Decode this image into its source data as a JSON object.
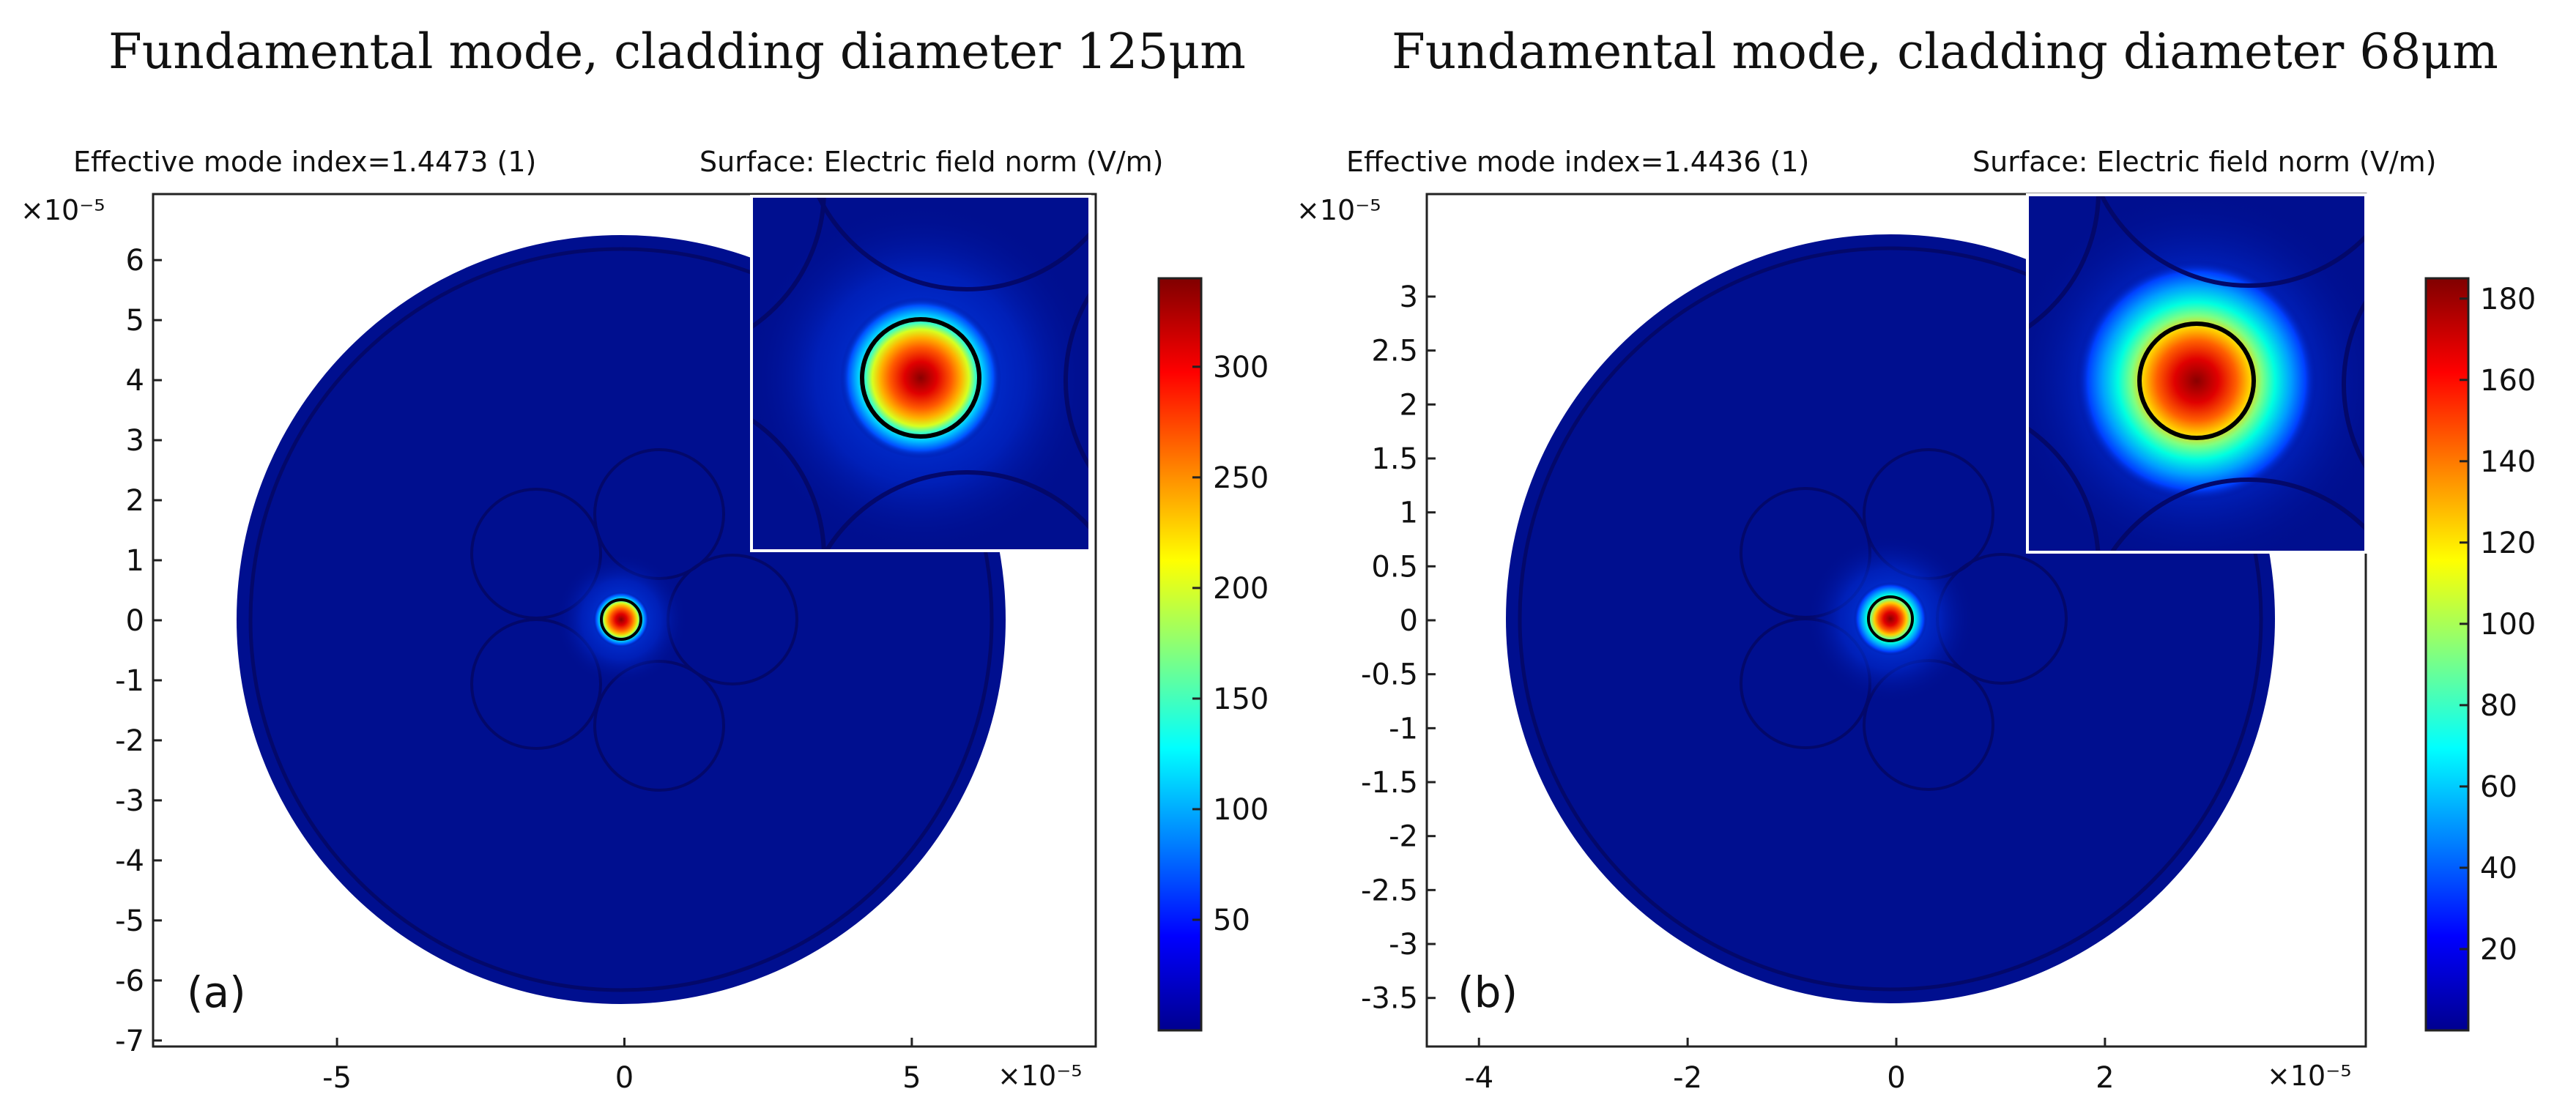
{
  "chart_data": [
    {
      "type": "heatmap",
      "panel_label": "(a)",
      "title": "Fundamental mode, cladding diameter 125μm",
      "subtitle_left": "Effective mode index=1.4473 (1)",
      "subtitle_right": "Surface: Electric field norm (V/m)",
      "x_exponent": "×10⁻⁵",
      "y_exponent": "×10⁻⁵",
      "xlim": [
        -8.2,
        8.2
      ],
      "ylim": [
        -7.1,
        7.1
      ],
      "x_ticks": [
        -5,
        0,
        5
      ],
      "x_tick_labels": [
        "-5",
        "0",
        "5"
      ],
      "y_ticks": [
        6,
        5,
        4,
        3,
        2,
        1,
        0,
        -1,
        -2,
        -3,
        -4,
        -5,
        -6,
        -7
      ],
      "y_tick_labels": [
        "6",
        "5",
        "4",
        "3",
        "2",
        "1",
        "0",
        "-1",
        "-2",
        "-3",
        "-4",
        "-5",
        "-6",
        "-7"
      ],
      "cladding_radius": 6.25,
      "core_radius": 0.3,
      "colorbar_range": [
        0,
        340
      ],
      "colorbar_ticks": [
        300,
        250,
        200,
        150,
        100,
        50
      ],
      "colorbar_tick_labels": [
        "300",
        "250",
        "200",
        "150",
        "100",
        "50"
      ]
    },
    {
      "type": "heatmap",
      "panel_label": "(b)",
      "title": "Fundamental mode, cladding diameter 68μm",
      "subtitle_left": "Effective mode index=1.4436 (1)",
      "subtitle_right": "Surface: Electric field norm (V/m)",
      "x_exponent": "×10⁻⁵",
      "y_exponent": "×10⁻⁵",
      "xlim": [
        -4.5,
        4.5
      ],
      "ylim": [
        -3.95,
        3.95
      ],
      "x_ticks": [
        -4,
        -2,
        0,
        2
      ],
      "x_tick_labels": [
        "-4",
        "-2",
        "0",
        "2"
      ],
      "y_ticks": [
        3,
        2.5,
        2,
        1.5,
        1,
        0.5,
        0,
        -0.5,
        -1,
        -1.5,
        -2,
        -2.5,
        -3,
        -3.5
      ],
      "y_tick_labels": [
        "3",
        "2.5",
        "2",
        "1.5",
        "1",
        "0.5",
        "0",
        "-0.5",
        "-1",
        "-1.5",
        "-2",
        "-2.5",
        "-3",
        "-3.5"
      ],
      "cladding_radius": 3.4,
      "core_radius": 0.15,
      "colorbar_range": [
        0,
        185
      ],
      "colorbar_ticks": [
        180,
        160,
        140,
        120,
        100,
        80,
        60,
        40,
        20
      ],
      "colorbar_tick_labels": [
        "180",
        "160",
        "140",
        "120",
        "100",
        "80",
        "60",
        "40",
        "20"
      ]
    }
  ],
  "colors": {
    "background_field": "#000f8f",
    "jet_stops": [
      "#00008f",
      "#0000ff",
      "#0080ff",
      "#00ffff",
      "#80ff80",
      "#ffff00",
      "#ff8000",
      "#ff0000",
      "#800000"
    ]
  }
}
